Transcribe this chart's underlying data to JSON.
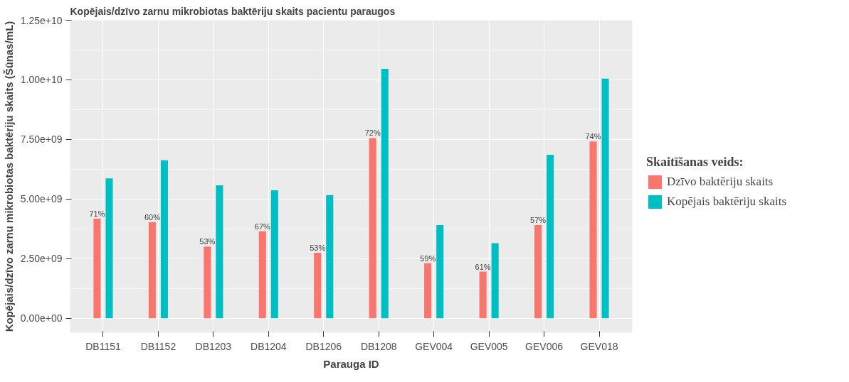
{
  "chart_data": {
    "type": "bar",
    "title": "Kopējais/dzīvo zarnu mikrobiotas baktēriju skaits pacientu paraugos",
    "xlabel": "Parauga ID",
    "ylabel": "Kopējais/dzīvo zarnu mikrobiotas baktēriju skaits (Šūnas/mL)",
    "legend_title": "Skaitīšanas veids:",
    "legend": "right",
    "grid": true,
    "categories": [
      "DB1151",
      "DB1152",
      "DB1203",
      "DB1204",
      "DB1206",
      "DB1208",
      "GEV004",
      "GEV005",
      "GEV006",
      "GEV018"
    ],
    "series": [
      {
        "name": "Dzīvo baktēriju skaits",
        "color": "#f8766d",
        "values": [
          4180000000.0,
          4030000000.0,
          3010000000.0,
          3650000000.0,
          2750000000.0,
          7560000000.0,
          2310000000.0,
          1960000000.0,
          3910000000.0,
          7420000000.0
        ]
      },
      {
        "name": "Kopējais baktēriju skaits",
        "color": "#00bfc4",
        "values": [
          5870000000.0,
          6630000000.0,
          5580000000.0,
          5370000000.0,
          5170000000.0,
          10460000000.0,
          3910000000.0,
          3150000000.0,
          6860000000.0,
          10050000000.0
        ]
      }
    ],
    "ylim": [
      -600000000.0,
      12500000000.0
    ],
    "yticks": [
      {
        "value": 0,
        "label": "0.00e+00"
      },
      {
        "value": 2500000000.0,
        "label": "2.50e+09"
      },
      {
        "value": 5000000000.0,
        "label": "5.00e+09"
      },
      {
        "value": 7500000000.0,
        "label": "7.50e+09"
      },
      {
        "value": 10000000000.0,
        "label": "1.00e+10"
      },
      {
        "value": 12500000000.0,
        "label": "1.25e+10"
      }
    ],
    "annotations": [
      {
        "text": "71%",
        "x": "DB1151",
        "y": 4180000000.0
      },
      {
        "text": "60%",
        "x": "DB1152",
        "y": 4030000000.0
      },
      {
        "text": "53%",
        "x": "DB1203",
        "y": 3010000000.0
      },
      {
        "text": "67%",
        "x": "DB1204",
        "y": 3650000000.0
      },
      {
        "text": "53%",
        "x": "DB1206",
        "y": 2750000000.0
      },
      {
        "text": "72%",
        "x": "DB1208",
        "y": 7560000000.0
      },
      {
        "text": "59%",
        "x": "GEV004",
        "y": 2310000000.0
      },
      {
        "text": "61%",
        "x": "GEV005",
        "y": 1960000000.0
      },
      {
        "text": "57%",
        "x": "GEV006",
        "y": 3910000000.0
      },
      {
        "text": "74%",
        "x": "GEV018",
        "y": 7420000000.0
      }
    ]
  }
}
